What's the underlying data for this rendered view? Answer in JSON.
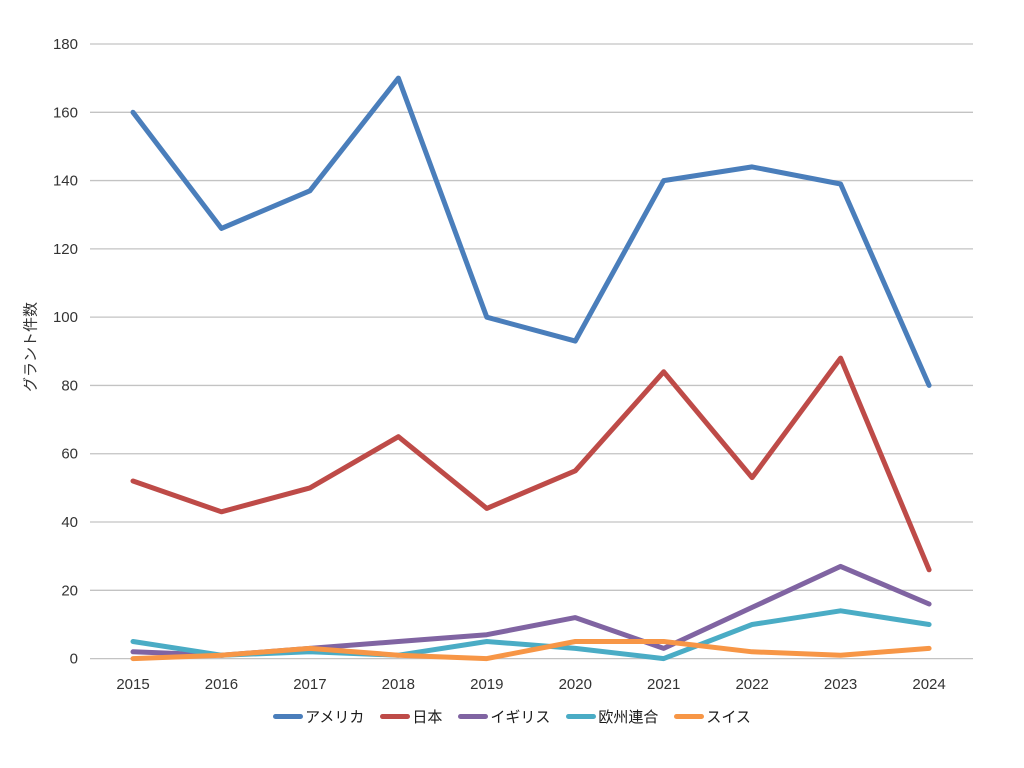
{
  "chart_data": {
    "type": "line",
    "title": "",
    "xlabel": "",
    "ylabel": "グラント件数",
    "x": [
      "2015",
      "2016",
      "2017",
      "2018",
      "2019",
      "2020",
      "2021",
      "2022",
      "2023",
      "2024"
    ],
    "series": [
      {
        "name": "アメリカ",
        "color": "#4a7ebb",
        "values": [
          160,
          126,
          137,
          170,
          100,
          93,
          140,
          144,
          139,
          80
        ]
      },
      {
        "name": "日本",
        "color": "#be4b48",
        "values": [
          52,
          43,
          50,
          65,
          44,
          55,
          84,
          53,
          88,
          26
        ]
      },
      {
        "name": "イギリス",
        "color": "#8064a2",
        "values": [
          2,
          1,
          3,
          5,
          7,
          12,
          3,
          15,
          27,
          16
        ]
      },
      {
        "name": "欧州連合",
        "color": "#4aacc5",
        "values": [
          5,
          1,
          2,
          1,
          5,
          3,
          0,
          10,
          14,
          10
        ]
      },
      {
        "name": "スイス",
        "color": "#f79646",
        "values": [
          0,
          1,
          3,
          1,
          0,
          5,
          5,
          2,
          1,
          3
        ]
      }
    ],
    "ylim": [
      0,
      180
    ],
    "ytick_step": 20,
    "yticks": [
      0,
      20,
      40,
      60,
      80,
      100,
      120,
      140,
      160,
      180
    ],
    "grid": "horizontal",
    "legend_position": "bottom"
  },
  "colors": {
    "background": "#ffffff",
    "gridline": "#c3c3c3",
    "text": "#333333"
  }
}
